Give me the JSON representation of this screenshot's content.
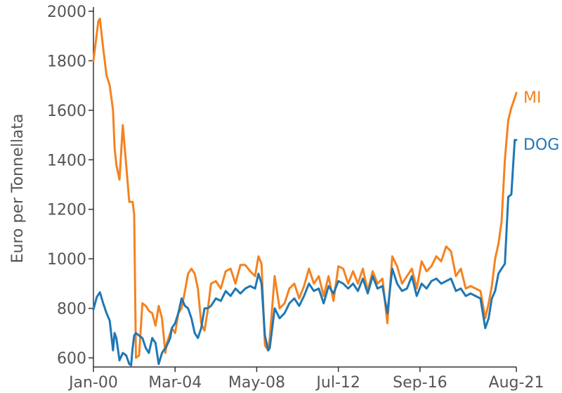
{
  "chart_data": {
    "type": "line",
    "title": "",
    "xlabel": "",
    "ylabel": "Euro per Tonnellata",
    "ylim": [
      560,
      2000
    ],
    "x_range": [
      2000.0,
      2021.583
    ],
    "x_ticks": [
      {
        "label": "Jan-00",
        "value": 2000.0
      },
      {
        "label": "Mar-04",
        "value": 2004.167
      },
      {
        "label": "May-08",
        "value": 2008.333
      },
      {
        "label": "Jul-12",
        "value": 2012.5
      },
      {
        "label": "Sep-16",
        "value": 2016.667
      },
      {
        "label": "Aug-21",
        "value": 2021.583
      }
    ],
    "y_ticks": [
      600,
      800,
      1000,
      1200,
      1400,
      1600,
      1800,
      2000
    ],
    "grid": false,
    "legend": "direct labels at line ends",
    "series": [
      {
        "name": "MI",
        "color": "#f5821f",
        "x": [
          2000.0,
          2000.25,
          2000.33,
          2000.5,
          2000.67,
          2000.83,
          2001.0,
          2001.08,
          2001.17,
          2001.33,
          2001.5,
          2001.67,
          2001.83,
          2001.92,
          2002.0,
          2002.08,
          2002.17,
          2002.33,
          2002.5,
          2002.67,
          2002.83,
          2003.0,
          2003.17,
          2003.33,
          2003.5,
          2003.67,
          2003.75,
          2003.92,
          2004.0,
          2004.17,
          2004.33,
          2004.5,
          2004.67,
          2004.83,
          2005.0,
          2005.17,
          2005.33,
          2005.5,
          2005.67,
          2005.83,
          2006.0,
          2006.25,
          2006.5,
          2006.75,
          2007.0,
          2007.25,
          2007.5,
          2007.75,
          2008.0,
          2008.25,
          2008.42,
          2008.58,
          2008.75,
          2008.92,
          2009.0,
          2009.25,
          2009.5,
          2009.75,
          2010.0,
          2010.25,
          2010.5,
          2010.75,
          2011.0,
          2011.25,
          2011.5,
          2011.75,
          2012.0,
          2012.25,
          2012.5,
          2012.75,
          2013.0,
          2013.25,
          2013.5,
          2013.75,
          2014.0,
          2014.25,
          2014.5,
          2014.75,
          2015.0,
          2015.25,
          2015.5,
          2015.75,
          2016.0,
          2016.25,
          2016.5,
          2016.75,
          2017.0,
          2017.25,
          2017.5,
          2017.75,
          2018.0,
          2018.25,
          2018.5,
          2018.75,
          2019.0,
          2019.25,
          2019.5,
          2019.75,
          2020.0,
          2020.17,
          2020.33,
          2020.5,
          2020.67,
          2020.83,
          2021.0,
          2021.17,
          2021.33,
          2021.5,
          2021.583
        ],
        "y": [
          1800,
          1960,
          1970,
          1850,
          1740,
          1700,
          1600,
          1450,
          1380,
          1320,
          1540,
          1380,
          1230,
          1230,
          1230,
          1180,
          600,
          610,
          820,
          810,
          790,
          780,
          730,
          810,
          760,
          620,
          660,
          700,
          720,
          700,
          780,
          800,
          870,
          940,
          960,
          940,
          880,
          740,
          710,
          790,
          900,
          910,
          880,
          950,
          960,
          900,
          975,
          975,
          950,
          930,
          1010,
          980,
          650,
          630,
          680,
          930,
          800,
          820,
          880,
          900,
          840,
          890,
          960,
          900,
          930,
          850,
          930,
          830,
          970,
          960,
          900,
          950,
          900,
          960,
          870,
          950,
          900,
          920,
          740,
          1010,
          970,
          900,
          930,
          960,
          880,
          990,
          950,
          970,
          1010,
          990,
          1050,
          1030,
          930,
          960,
          880,
          890,
          880,
          870,
          760,
          820,
          890,
          1000,
          1060,
          1150,
          1400,
          1560,
          1610,
          1650,
          1670
        ]
      },
      {
        "name": "DOG",
        "color": "#1f77b4",
        "x": [
          2000.0,
          2000.17,
          2000.33,
          2000.5,
          2000.67,
          2000.83,
          2001.0,
          2001.08,
          2001.17,
          2001.33,
          2001.5,
          2001.67,
          2001.83,
          2001.92,
          2002.0,
          2002.08,
          2002.17,
          2002.33,
          2002.5,
          2002.67,
          2002.83,
          2003.0,
          2003.17,
          2003.33,
          2003.5,
          2003.67,
          2003.75,
          2003.92,
          2004.0,
          2004.17,
          2004.33,
          2004.5,
          2004.67,
          2004.83,
          2005.0,
          2005.17,
          2005.33,
          2005.5,
          2005.67,
          2005.83,
          2006.0,
          2006.25,
          2006.5,
          2006.75,
          2007.0,
          2007.25,
          2007.5,
          2007.75,
          2008.0,
          2008.25,
          2008.42,
          2008.58,
          2008.75,
          2008.92,
          2009.0,
          2009.25,
          2009.5,
          2009.75,
          2010.0,
          2010.25,
          2010.5,
          2010.75,
          2011.0,
          2011.25,
          2011.5,
          2011.75,
          2012.0,
          2012.25,
          2012.5,
          2012.75,
          2013.0,
          2013.25,
          2013.5,
          2013.75,
          2014.0,
          2014.25,
          2014.5,
          2014.75,
          2015.0,
          2015.25,
          2015.5,
          2015.75,
          2016.0,
          2016.25,
          2016.5,
          2016.75,
          2017.0,
          2017.25,
          2017.5,
          2017.75,
          2018.0,
          2018.25,
          2018.5,
          2018.75,
          2019.0,
          2019.25,
          2019.5,
          2019.75,
          2020.0,
          2020.17,
          2020.33,
          2020.5,
          2020.67,
          2020.83,
          2021.0,
          2021.17,
          2021.33,
          2021.5,
          2021.583
        ],
        "y": [
          795,
          845,
          865,
          820,
          780,
          750,
          630,
          700,
          680,
          590,
          620,
          610,
          575,
          570,
          640,
          690,
          700,
          690,
          680,
          640,
          620,
          680,
          660,
          575,
          620,
          640,
          650,
          680,
          720,
          740,
          780,
          840,
          810,
          800,
          760,
          700,
          680,
          720,
          800,
          800,
          810,
          840,
          830,
          870,
          850,
          880,
          860,
          880,
          890,
          880,
          940,
          900,
          690,
          630,
          640,
          800,
          760,
          780,
          820,
          840,
          810,
          850,
          900,
          870,
          880,
          820,
          890,
          860,
          910,
          900,
          880,
          900,
          870,
          920,
          860,
          930,
          880,
          890,
          780,
          960,
          900,
          870,
          880,
          930,
          850,
          900,
          880,
          910,
          920,
          900,
          910,
          920,
          870,
          880,
          850,
          860,
          850,
          840,
          720,
          760,
          840,
          870,
          940,
          960,
          980,
          1250,
          1260,
          1480,
          1480
        ]
      }
    ]
  }
}
